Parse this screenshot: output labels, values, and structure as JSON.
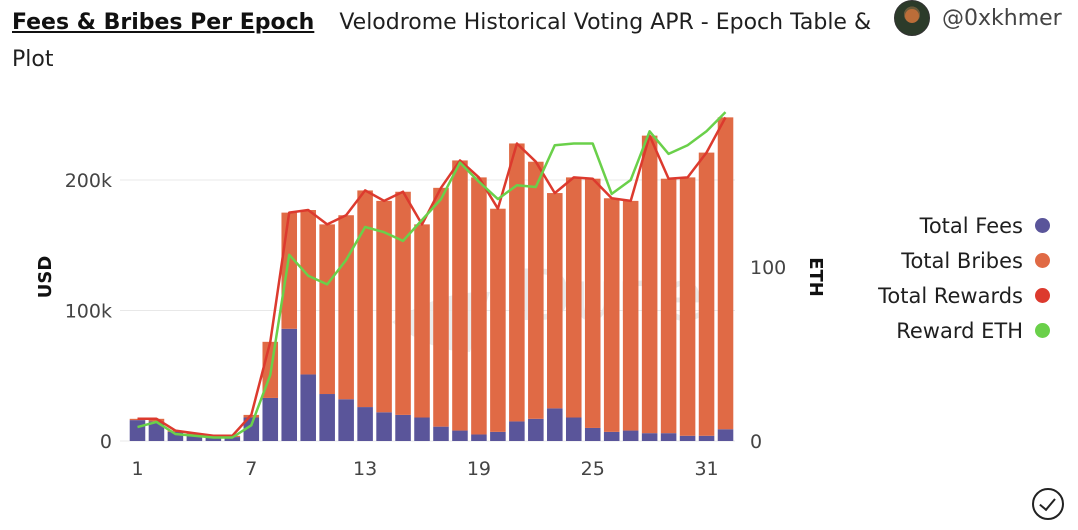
{
  "header": {
    "title": "Fees & Bribes Per Epoch",
    "subtitle": "Velodrome Historical Voting APR - Epoch Table & Plot",
    "author": "@0xkhmer"
  },
  "watermark": "Dune",
  "colors": {
    "fees": "#5a559a",
    "bribes": "#e06a45",
    "rewards": "#dc3a2e",
    "eth": "#6ad04a"
  },
  "legend": [
    {
      "label": "Total Fees",
      "color": "#5a559a"
    },
    {
      "label": "Total Bribes",
      "color": "#e06a45"
    },
    {
      "label": "Total Rewards",
      "color": "#dc3a2e"
    },
    {
      "label": "Reward ETH",
      "color": "#6ad04a"
    }
  ],
  "chart_data": {
    "type": "bar",
    "stacked": true,
    "x": [
      1,
      2,
      3,
      4,
      5,
      6,
      7,
      8,
      9,
      10,
      11,
      12,
      13,
      14,
      15,
      16,
      17,
      18,
      19,
      20,
      21,
      22,
      23,
      24,
      25,
      26,
      27,
      28,
      29,
      30,
      31,
      32
    ],
    "x_ticks": [
      "1",
      "7",
      "13",
      "19",
      "25",
      "31"
    ],
    "ylabel_left": "USD",
    "ylabel_right": "ETH",
    "y_left_ticks": [
      "0",
      "100k",
      "200k"
    ],
    "y_right_ticks": [
      "0",
      "100"
    ],
    "ylim_left": [
      0,
      250000
    ],
    "ylim_right": [
      0,
      180
    ],
    "grid": true,
    "legend_position": "right",
    "series": [
      {
        "name": "Total Fees",
        "kind": "bar",
        "axis": "left",
        "values": [
          16000,
          15000,
          7000,
          5000,
          3000,
          3000,
          18000,
          33000,
          86000,
          51000,
          36000,
          32000,
          26000,
          22000,
          20000,
          18000,
          11000,
          8000,
          5000,
          7000,
          15000,
          17000,
          25000,
          18000,
          10000,
          7000,
          8000,
          6000,
          6000,
          4000,
          4000,
          9000
        ]
      },
      {
        "name": "Total Bribes",
        "kind": "bar",
        "axis": "left",
        "values": [
          1000,
          2000,
          1000,
          1000,
          1000,
          1000,
          2000,
          43000,
          89000,
          126000,
          130000,
          141000,
          166000,
          162000,
          171000,
          148000,
          183000,
          207000,
          197000,
          171000,
          213000,
          197000,
          165000,
          184000,
          191000,
          179000,
          176000,
          228000,
          195000,
          198000,
          217000,
          239000
        ]
      },
      {
        "name": "Total Rewards",
        "kind": "line",
        "axis": "left",
        "values": [
          17000,
          17000,
          8000,
          6000,
          4000,
          4000,
          20000,
          76000,
          175000,
          177000,
          166000,
          173000,
          192000,
          184000,
          191000,
          166000,
          194000,
          215000,
          202000,
          178000,
          228000,
          214000,
          190000,
          202000,
          201000,
          186000,
          184000,
          234000,
          201000,
          202000,
          221000,
          248000
        ]
      },
      {
        "name": "Reward ETH",
        "kind": "line",
        "axis": "right",
        "values": [
          8,
          11,
          4,
          3,
          2,
          2,
          9,
          38,
          107,
          95,
          90,
          104,
          123,
          120,
          115,
          127,
          139,
          160,
          149,
          139,
          147,
          146,
          170,
          171,
          171,
          142,
          150,
          178,
          165,
          170,
          178,
          189
        ]
      }
    ]
  }
}
